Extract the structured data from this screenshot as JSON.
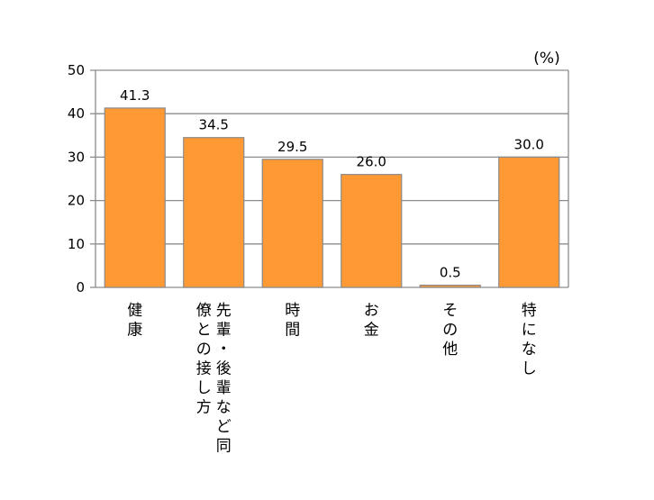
{
  "colors": {
    "bar_fill": "#ff9933",
    "bar_stroke": "#8a8a8a",
    "grid": "#8c8c8c",
    "axis": "#8c8c8c"
  },
  "chart_data": {
    "type": "bar",
    "unit_label": "(%)",
    "categories": [
      "健康",
      "先輩・後輩など同僚との接し方",
      "時間",
      "お金",
      "その他",
      "特になし"
    ],
    "category_columns": [
      [
        "健康"
      ],
      [
        "先輩・後輩など同",
        "僚との接し方"
      ],
      [
        "時間"
      ],
      [
        "お金"
      ],
      [
        "その他"
      ],
      [
        "特になし"
      ]
    ],
    "values": [
      41.3,
      34.5,
      29.5,
      26.0,
      0.5,
      30.0
    ],
    "value_labels": [
      "41.3",
      "34.5",
      "29.5",
      "26.0",
      "0.5",
      "30.0"
    ],
    "ylim": [
      0,
      50
    ],
    "yticks": [
      "0",
      "10",
      "20",
      "30",
      "40",
      "50"
    ],
    "grid": true,
    "legend": "none"
  }
}
